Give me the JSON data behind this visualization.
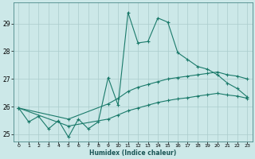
{
  "xlabel": "Humidex (Indice chaleur)",
  "bg_color": "#cce8e8",
  "grid_color": "#aacccc",
  "line_color": "#1a7a6a",
  "xlim": [
    -0.5,
    23.5
  ],
  "ylim": [
    24.75,
    29.75
  ],
  "xticks": [
    0,
    1,
    2,
    3,
    4,
    5,
    6,
    7,
    8,
    9,
    10,
    11,
    12,
    13,
    14,
    15,
    16,
    17,
    18,
    19,
    20,
    21,
    22,
    23
  ],
  "yticks": [
    25,
    26,
    27,
    28,
    29
  ],
  "line1_x": [
    0,
    1,
    2,
    3,
    4,
    5,
    6,
    7,
    8,
    9,
    10,
    11,
    12,
    13,
    14,
    15,
    16,
    17,
    18,
    19,
    20,
    21,
    22,
    23
  ],
  "line1_y": [
    25.95,
    25.45,
    25.65,
    25.2,
    25.5,
    24.9,
    25.55,
    25.2,
    25.45,
    27.05,
    26.05,
    29.4,
    28.3,
    28.35,
    29.2,
    29.05,
    27.95,
    27.7,
    27.45,
    27.35,
    27.15,
    26.85,
    26.65,
    26.35
  ],
  "line2_x": [
    0,
    5,
    9,
    10,
    11,
    12,
    13,
    14,
    15,
    16,
    17,
    18,
    19,
    20,
    21,
    22,
    23
  ],
  "line2_y": [
    25.95,
    25.55,
    26.1,
    26.3,
    26.55,
    26.7,
    26.8,
    26.9,
    27.0,
    27.05,
    27.1,
    27.15,
    27.2,
    27.25,
    27.15,
    27.1,
    27.0
  ],
  "line3_x": [
    0,
    5,
    9,
    10,
    11,
    12,
    13,
    14,
    15,
    16,
    17,
    18,
    19,
    20,
    21,
    22,
    23
  ],
  "line3_y": [
    25.95,
    25.3,
    25.55,
    25.7,
    25.85,
    25.95,
    26.05,
    26.15,
    26.22,
    26.28,
    26.32,
    26.38,
    26.43,
    26.48,
    26.42,
    26.38,
    26.3
  ],
  "marker": "+"
}
